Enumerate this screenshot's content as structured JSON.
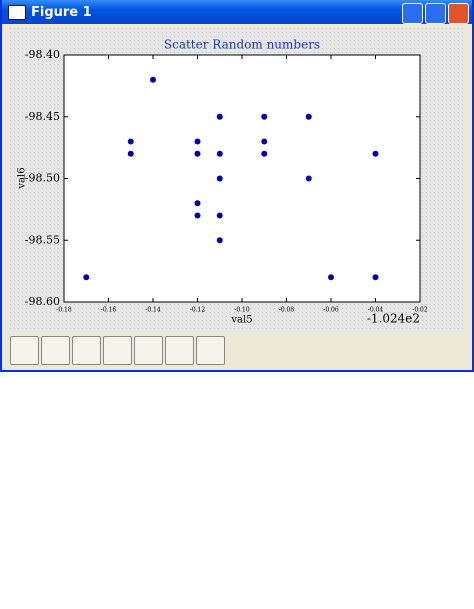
{
  "window": {
    "title": "Figure 1"
  },
  "chart_data": {
    "type": "scatter",
    "title": "Scatter Random numbers",
    "xlabel": "val5",
    "ylabel": "val6",
    "x_offset_label": "-1.024e2",
    "x": [
      -0.17,
      -0.15,
      -0.15,
      -0.14,
      -0.12,
      -0.12,
      -0.12,
      -0.12,
      -0.11,
      -0.11,
      -0.11,
      -0.11,
      -0.11,
      -0.09,
      -0.09,
      -0.09,
      -0.07,
      -0.07,
      -0.06,
      -0.04,
      -0.04
    ],
    "values": [
      -98.58,
      -98.47,
      -98.48,
      -98.42,
      -98.47,
      -98.48,
      -98.52,
      -98.53,
      -98.45,
      -98.48,
      -98.5,
      -98.53,
      -98.55,
      -98.45,
      -98.47,
      -98.48,
      -98.45,
      -98.5,
      -98.58,
      -98.48,
      -98.58
    ],
    "color": "#0000aa",
    "xlim": [
      -0.18,
      -0.02
    ],
    "ylim": [
      -98.6,
      -98.4
    ],
    "xticks": [
      -0.18,
      -0.16,
      -0.14,
      -0.12,
      {
        "value": -0.1,
        "label": "-0.10"
      },
      -0.08,
      -0.06,
      -0.04,
      -0.02
    ],
    "yticks": [
      {
        "value": -98.4,
        "label": "-98.40"
      },
      -98.45,
      {
        "value": -98.5,
        "label": "-98.50"
      },
      -98.55,
      {
        "value": -98.6,
        "label": "-98.60"
      }
    ]
  }
}
